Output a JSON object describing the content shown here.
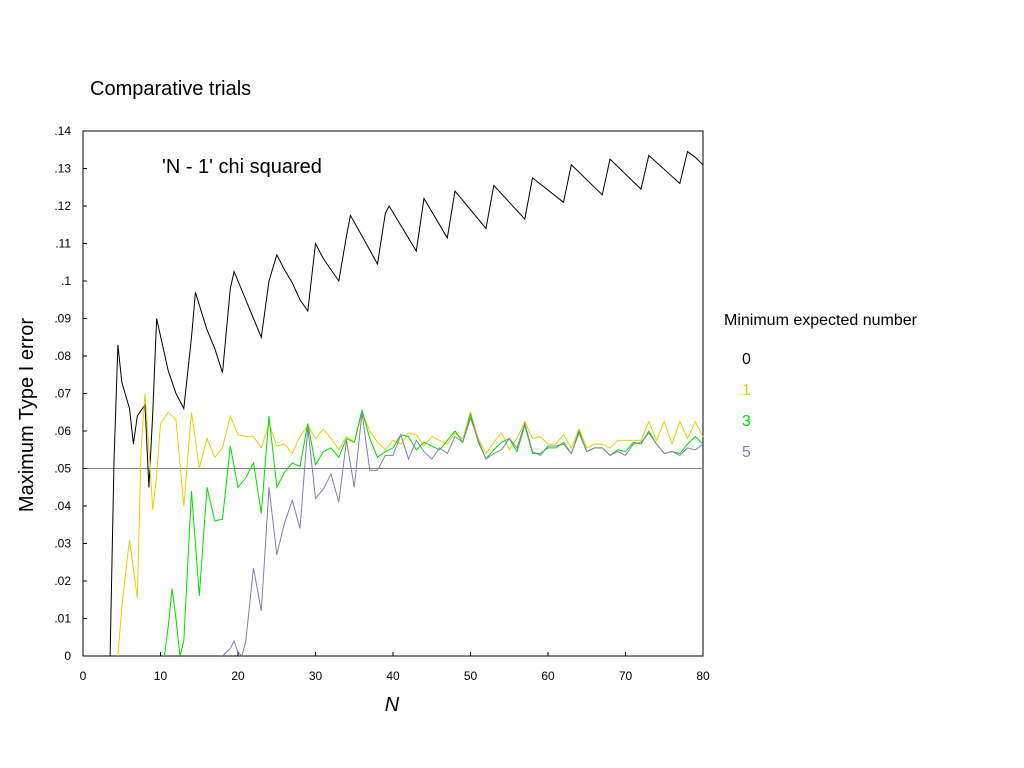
{
  "chart_data": {
    "type": "line",
    "title": "Comparative trials",
    "annotation": "'N - 1' chi squared",
    "xlabel": "N",
    "ylabel": "Maximum Type I error",
    "xlim": [
      0,
      80
    ],
    "ylim": [
      0,
      0.14
    ],
    "x_ticks": [
      "0",
      "10",
      "20",
      "30",
      "40",
      "50",
      "60",
      "70",
      "80"
    ],
    "y_ticks": [
      "0",
      ".01",
      ".02",
      ".03",
      ".04",
      ".05",
      ".06",
      ".07",
      ".08",
      ".09",
      ".1",
      ".11",
      ".12",
      ".13",
      ".14"
    ],
    "reference_line": 0.05,
    "reference_color": "#808080",
    "grid": false,
    "legend": {
      "title": "Minimum expected number",
      "placement": "right"
    },
    "series": [
      {
        "name": "0",
        "color": "#000000",
        "points": [
          [
            3.5,
            0
          ],
          [
            4,
            0.052
          ],
          [
            4.5,
            0.083
          ],
          [
            5,
            0.073
          ],
          [
            6,
            0.066
          ],
          [
            6.5,
            0.0565
          ],
          [
            7,
            0.064
          ],
          [
            8,
            0.067
          ],
          [
            8.5,
            0.045
          ],
          [
            9,
            0.065
          ],
          [
            9.5,
            0.09
          ],
          [
            11,
            0.076
          ],
          [
            12,
            0.07
          ],
          [
            13,
            0.066
          ],
          [
            14,
            0.085
          ],
          [
            14.5,
            0.097
          ],
          [
            16,
            0.087
          ],
          [
            17,
            0.082
          ],
          [
            18,
            0.0755
          ],
          [
            19,
            0.098
          ],
          [
            19.5,
            0.1025
          ],
          [
            21,
            0.095
          ],
          [
            22,
            0.09
          ],
          [
            23,
            0.085
          ],
          [
            24,
            0.1
          ],
          [
            25,
            0.107
          ],
          [
            26,
            0.103
          ],
          [
            27,
            0.0995
          ],
          [
            28,
            0.095
          ],
          [
            29,
            0.092
          ],
          [
            30,
            0.11
          ],
          [
            31,
            0.106
          ],
          [
            33,
            0.1
          ],
          [
            34,
            0.112
          ],
          [
            34.5,
            0.1175
          ],
          [
            36,
            0.112
          ],
          [
            38,
            0.1045
          ],
          [
            39,
            0.118
          ],
          [
            39.5,
            0.12
          ],
          [
            43,
            0.108
          ],
          [
            44,
            0.122
          ],
          [
            47,
            0.1115
          ],
          [
            48,
            0.124
          ],
          [
            52,
            0.114
          ],
          [
            53,
            0.1255
          ],
          [
            57,
            0.1165
          ],
          [
            58,
            0.1275
          ],
          [
            62,
            0.121
          ],
          [
            63,
            0.131
          ],
          [
            67,
            0.123
          ],
          [
            68,
            0.1325
          ],
          [
            72,
            0.1245
          ],
          [
            73,
            0.1335
          ],
          [
            77,
            0.126
          ],
          [
            78,
            0.1345
          ],
          [
            79,
            0.133
          ],
          [
            80,
            0.131
          ]
        ]
      },
      {
        "name": "1",
        "color": "#e3d200",
        "points": [
          [
            4.5,
            0
          ],
          [
            5,
            0.013
          ],
          [
            5.5,
            0.022
          ],
          [
            6,
            0.031
          ],
          [
            7,
            0.0155
          ],
          [
            7.5,
            0.055
          ],
          [
            8,
            0.07
          ],
          [
            8.5,
            0.055
          ],
          [
            9,
            0.039
          ],
          [
            9.5,
            0.048
          ],
          [
            10,
            0.062
          ],
          [
            11,
            0.065
          ],
          [
            12,
            0.063
          ],
          [
            13,
            0.04
          ],
          [
            14,
            0.065
          ],
          [
            15,
            0.05
          ],
          [
            16,
            0.058
          ],
          [
            17,
            0.053
          ],
          [
            18,
            0.0555
          ],
          [
            19,
            0.064
          ],
          [
            20,
            0.059
          ],
          [
            21,
            0.0585
          ],
          [
            22,
            0.0585
          ],
          [
            23,
            0.0555
          ],
          [
            24,
            0.062
          ],
          [
            25,
            0.056
          ],
          [
            26,
            0.0565
          ],
          [
            27,
            0.054
          ],
          [
            28,
            0.0585
          ],
          [
            29,
            0.0615
          ],
          [
            30,
            0.058
          ],
          [
            31,
            0.0605
          ],
          [
            32,
            0.058
          ],
          [
            33,
            0.055
          ],
          [
            34,
            0.0585
          ],
          [
            35,
            0.057
          ],
          [
            36,
            0.065
          ],
          [
            37,
            0.06
          ],
          [
            38,
            0.057
          ],
          [
            39,
            0.055
          ],
          [
            40,
            0.0575
          ],
          [
            41,
            0.0565
          ],
          [
            42,
            0.0595
          ],
          [
            43,
            0.059
          ],
          [
            44,
            0.056
          ],
          [
            45,
            0.0585
          ],
          [
            46,
            0.0575
          ],
          [
            47,
            0.0565
          ],
          [
            48,
            0.0595
          ],
          [
            49,
            0.058
          ],
          [
            50,
            0.065
          ],
          [
            51,
            0.058
          ],
          [
            52,
            0.054
          ],
          [
            53,
            0.057
          ],
          [
            54,
            0.0595
          ],
          [
            55,
            0.055
          ],
          [
            56,
            0.058
          ],
          [
            57,
            0.0625
          ],
          [
            58,
            0.058
          ],
          [
            59,
            0.0585
          ],
          [
            60,
            0.0565
          ],
          [
            61,
            0.0565
          ],
          [
            62,
            0.059
          ],
          [
            63,
            0.0555
          ],
          [
            64,
            0.0605
          ],
          [
            65,
            0.0555
          ],
          [
            66,
            0.0565
          ],
          [
            67,
            0.0565
          ],
          [
            68,
            0.0555
          ],
          [
            69,
            0.0575
          ],
          [
            70,
            0.0575
          ],
          [
            71,
            0.0575
          ],
          [
            72,
            0.0575
          ],
          [
            73,
            0.0625
          ],
          [
            74,
            0.0575
          ],
          [
            75,
            0.0625
          ],
          [
            76,
            0.0565
          ],
          [
            77,
            0.0625
          ],
          [
            78,
            0.058
          ],
          [
            79,
            0.0625
          ],
          [
            80,
            0.0585
          ]
        ]
      },
      {
        "name": "3",
        "color": "#00dd00",
        "points": [
          [
            10.5,
            0
          ],
          [
            11,
            0.008
          ],
          [
            11.5,
            0.018
          ],
          [
            12,
            0.01
          ],
          [
            12.5,
            0
          ],
          [
            13,
            0.004
          ],
          [
            14,
            0.044
          ],
          [
            15,
            0.016
          ],
          [
            16,
            0.045
          ],
          [
            17,
            0.036
          ],
          [
            18,
            0.0365
          ],
          [
            19,
            0.056
          ],
          [
            20,
            0.045
          ],
          [
            21,
            0.0475
          ],
          [
            22,
            0.0515
          ],
          [
            23,
            0.038
          ],
          [
            24,
            0.064
          ],
          [
            25,
            0.045
          ],
          [
            26,
            0.049
          ],
          [
            27,
            0.0515
          ],
          [
            28,
            0.0505
          ],
          [
            29,
            0.062
          ],
          [
            30,
            0.051
          ],
          [
            31,
            0.0545
          ],
          [
            32,
            0.0555
          ],
          [
            33,
            0.053
          ],
          [
            34,
            0.058
          ],
          [
            35,
            0.057
          ],
          [
            36,
            0.0655
          ],
          [
            37,
            0.058
          ],
          [
            38,
            0.053
          ],
          [
            39,
            0.0545
          ],
          [
            40,
            0.0555
          ],
          [
            41,
            0.059
          ],
          [
            42,
            0.0585
          ],
          [
            43,
            0.055
          ],
          [
            44,
            0.057
          ],
          [
            45,
            0.056
          ],
          [
            46,
            0.055
          ],
          [
            47,
            0.0575
          ],
          [
            48,
            0.06
          ],
          [
            49,
            0.057
          ],
          [
            50,
            0.0645
          ],
          [
            51,
            0.057
          ],
          [
            52,
            0.0525
          ],
          [
            53,
            0.055
          ],
          [
            54,
            0.057
          ],
          [
            55,
            0.058
          ],
          [
            56,
            0.0545
          ],
          [
            57,
            0.0615
          ],
          [
            58,
            0.054
          ],
          [
            59,
            0.054
          ],
          [
            60,
            0.0555
          ],
          [
            61,
            0.0555
          ],
          [
            62,
            0.057
          ],
          [
            63,
            0.054
          ],
          [
            64,
            0.06
          ],
          [
            65,
            0.0545
          ],
          [
            66,
            0.0555
          ],
          [
            67,
            0.0555
          ],
          [
            68,
            0.0535
          ],
          [
            69,
            0.055
          ],
          [
            70,
            0.0545
          ],
          [
            71,
            0.057
          ],
          [
            72,
            0.0565
          ],
          [
            73,
            0.06
          ],
          [
            74,
            0.0565
          ],
          [
            75,
            0.054
          ],
          [
            76,
            0.0545
          ],
          [
            77,
            0.054
          ],
          [
            78,
            0.0565
          ],
          [
            79,
            0.0585
          ],
          [
            80,
            0.0565
          ]
        ]
      },
      {
        "name": "5",
        "color": "#8080b0",
        "points": [
          [
            18,
            0
          ],
          [
            19,
            0.002
          ],
          [
            19.5,
            0.004
          ],
          [
            20,
            0.001
          ],
          [
            20.5,
            0
          ],
          [
            21,
            0.004
          ],
          [
            22,
            0.0235
          ],
          [
            23,
            0.012
          ],
          [
            24,
            0.045
          ],
          [
            25,
            0.027
          ],
          [
            26,
            0.0355
          ],
          [
            27,
            0.0415
          ],
          [
            28,
            0.034
          ],
          [
            29,
            0.061
          ],
          [
            30,
            0.042
          ],
          [
            31,
            0.0445
          ],
          [
            32,
            0.0485
          ],
          [
            33,
            0.041
          ],
          [
            34,
            0.0575
          ],
          [
            35,
            0.045
          ],
          [
            36,
            0.065
          ],
          [
            37,
            0.0495
          ],
          [
            38,
            0.0495
          ],
          [
            39,
            0.0535
          ],
          [
            40,
            0.0535
          ],
          [
            41,
            0.059
          ],
          [
            42,
            0.0525
          ],
          [
            43,
            0.0575
          ],
          [
            44,
            0.0545
          ],
          [
            45,
            0.0525
          ],
          [
            46,
            0.0555
          ],
          [
            47,
            0.054
          ],
          [
            48,
            0.0585
          ],
          [
            49,
            0.057
          ],
          [
            50,
            0.0635
          ],
          [
            51,
            0.0575
          ],
          [
            52,
            0.0525
          ],
          [
            53,
            0.054
          ],
          [
            54,
            0.055
          ],
          [
            55,
            0.058
          ],
          [
            56,
            0.0555
          ],
          [
            57,
            0.062
          ],
          [
            58,
            0.0545
          ],
          [
            59,
            0.0535
          ],
          [
            60,
            0.056
          ],
          [
            61,
            0.056
          ],
          [
            62,
            0.0565
          ],
          [
            63,
            0.054
          ],
          [
            64,
            0.0595
          ],
          [
            65,
            0.0545
          ],
          [
            66,
            0.0555
          ],
          [
            67,
            0.0555
          ],
          [
            68,
            0.0535
          ],
          [
            69,
            0.0545
          ],
          [
            70,
            0.0535
          ],
          [
            71,
            0.0565
          ],
          [
            72,
            0.057
          ],
          [
            73,
            0.0595
          ],
          [
            74,
            0.0565
          ],
          [
            75,
            0.054
          ],
          [
            76,
            0.0545
          ],
          [
            77,
            0.0535
          ],
          [
            78,
            0.0555
          ],
          [
            79,
            0.055
          ],
          [
            80,
            0.0565
          ]
        ]
      }
    ]
  }
}
